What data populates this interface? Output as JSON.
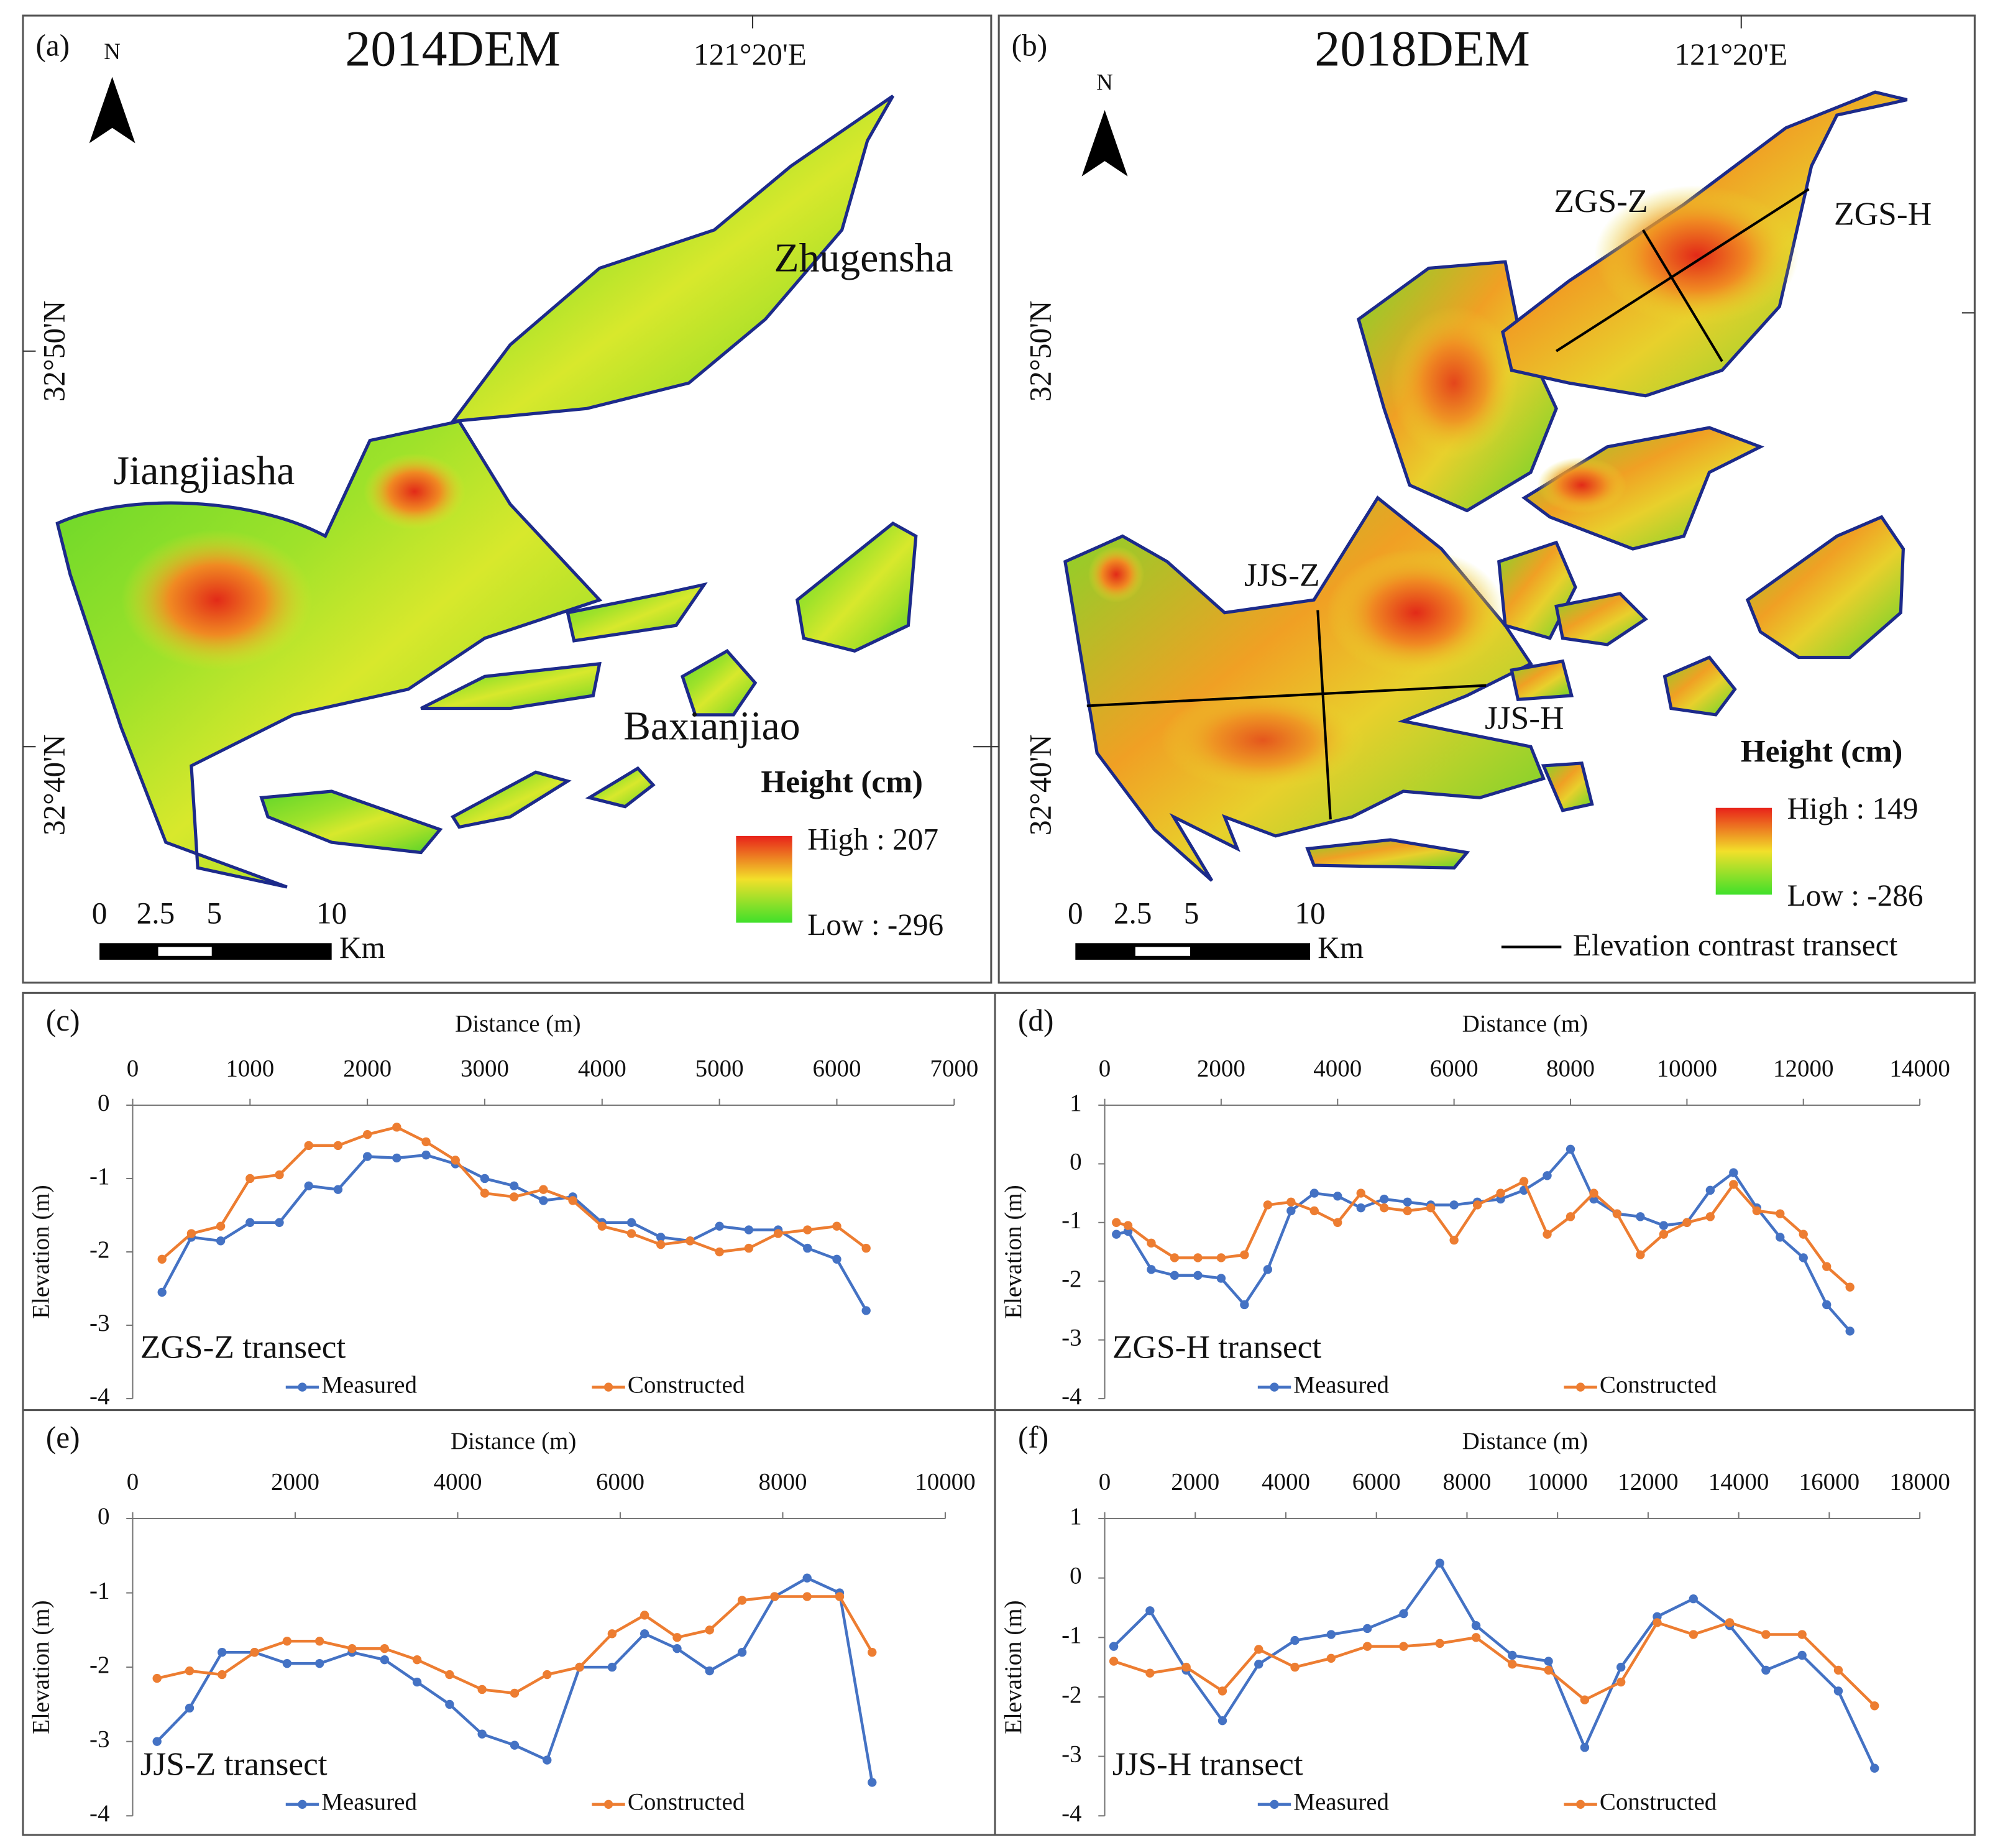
{
  "maps": [
    {
      "label": "(a)",
      "title": "2014DEM",
      "longitude": "121°20'E",
      "latitudes": [
        "32°50'N",
        "32°40'N"
      ],
      "north": "N",
      "places": [
        "Jiangjiasha",
        "Zhugensha",
        "Baxianjiao"
      ],
      "legend_title": "Height (cm)",
      "high": "High : 207",
      "low": "Low : -296",
      "scale": [
        "0",
        "2.5",
        "5",
        "10"
      ],
      "scale_unit": "Km"
    },
    {
      "label": "(b)",
      "title": "2018DEM",
      "longitude": "121°20'E",
      "latitudes": [
        "32°50'N",
        "32°40'N"
      ],
      "north": "N",
      "transects": [
        "ZGS-Z",
        "ZGS-H",
        "JJS-Z",
        "JJS-H"
      ],
      "legend_title": "Height (cm)",
      "high": "High : 149",
      "low": "Low : -286",
      "scale": [
        "0",
        "2.5",
        "5",
        "10"
      ],
      "scale_unit": "Km",
      "transect_legend": "Elevation contrast transect"
    }
  ],
  "chart_data": [
    {
      "type": "line",
      "panel": "(c)",
      "x_label": "Distance (m)",
      "y_label": "Elevation (m)",
      "annotation": "ZGS-Z transect",
      "xlim": [
        0,
        7000
      ],
      "xticks": [
        0,
        1000,
        2000,
        3000,
        4000,
        5000,
        6000,
        7000
      ],
      "ylim": [
        -4,
        0
      ],
      "yticks": [
        -4,
        -3,
        -2,
        -1,
        0
      ],
      "x": [
        250,
        500,
        750,
        1000,
        1250,
        1500,
        1750,
        2000,
        2250,
        2500,
        2750,
        3000,
        3250,
        3500,
        3750,
        4000,
        4250,
        4500,
        4750,
        5000,
        5250,
        5500,
        5750,
        6000,
        6250
      ],
      "series": [
        {
          "name": "Measured",
          "color": "#4472c4",
          "values": [
            -2.55,
            -1.8,
            -1.85,
            -1.6,
            -1.6,
            -1.1,
            -1.15,
            -0.7,
            -0.72,
            -0.68,
            -0.8,
            -1.0,
            -1.1,
            -1.3,
            -1.25,
            -1.6,
            -1.6,
            -1.8,
            -1.85,
            -1.65,
            -1.7,
            -1.7,
            -1.95,
            -2.1,
            -2.8
          ]
        },
        {
          "name": "Constructed",
          "color": "#ed7d31",
          "values": [
            -2.1,
            -1.75,
            -1.65,
            -1.0,
            -0.95,
            -0.55,
            -0.55,
            -0.4,
            -0.3,
            -0.5,
            -0.75,
            -1.2,
            -1.25,
            -1.15,
            -1.3,
            -1.65,
            -1.75,
            -1.9,
            -1.85,
            -2.0,
            -1.95,
            -1.75,
            -1.7,
            -1.65,
            -1.95
          ]
        }
      ]
    },
    {
      "type": "line",
      "panel": "(d)",
      "x_label": "Distance (m)",
      "y_label": "Elevation (m)",
      "annotation": "ZGS-H transect",
      "xlim": [
        0,
        14000
      ],
      "xticks": [
        0,
        2000,
        4000,
        6000,
        8000,
        10000,
        12000,
        14000
      ],
      "ylim": [
        -4,
        1
      ],
      "yticks": [
        -4,
        -3,
        -2,
        -1,
        0,
        1
      ],
      "x": [
        200,
        400,
        800,
        1200,
        1600,
        2000,
        2400,
        2800,
        3200,
        3600,
        4000,
        4400,
        4800,
        5200,
        5600,
        6000,
        6400,
        6800,
        7200,
        7600,
        8000,
        8400,
        8800,
        9200,
        9600,
        10000,
        10400,
        10800,
        11200,
        11600,
        12000,
        12400,
        12800
      ],
      "series": [
        {
          "name": "Measured",
          "color": "#4472c4",
          "values": [
            -1.2,
            -1.15,
            -1.8,
            -1.9,
            -1.9,
            -1.95,
            -2.4,
            -1.8,
            -0.8,
            -0.5,
            -0.55,
            -0.75,
            -0.6,
            -0.65,
            -0.7,
            -0.7,
            -0.65,
            -0.6,
            -0.45,
            -0.2,
            0.25,
            -0.6,
            -0.85,
            -0.9,
            -1.05,
            -1.0,
            -0.45,
            -0.15,
            -0.75,
            -1.25,
            -1.6,
            -2.4,
            -2.85
          ]
        },
        {
          "name": "Constructed",
          "color": "#ed7d31",
          "values": [
            -1.0,
            -1.05,
            -1.35,
            -1.6,
            -1.6,
            -1.6,
            -1.55,
            -0.7,
            -0.65,
            -0.8,
            -1.0,
            -0.5,
            -0.75,
            -0.8,
            -0.75,
            -1.3,
            -0.7,
            -0.5,
            -0.3,
            -1.2,
            -0.9,
            -0.5,
            -0.85,
            -1.55,
            -1.2,
            -1.0,
            -0.9,
            -0.35,
            -0.8,
            -0.85,
            -1.2,
            -1.75,
            -2.1
          ]
        }
      ]
    },
    {
      "type": "line",
      "panel": "(e)",
      "x_label": "Distance (m)",
      "y_label": "Elevation (m)",
      "annotation": "JJS-Z transect",
      "xlim": [
        0,
        10000
      ],
      "xticks": [
        0,
        2000,
        4000,
        6000,
        8000,
        10000
      ],
      "ylim": [
        -4,
        0
      ],
      "yticks": [
        -4,
        -3,
        -2,
        -1,
        0
      ],
      "x": [
        300,
        700,
        1100,
        1500,
        1900,
        2300,
        2700,
        3100,
        3500,
        3900,
        4300,
        4700,
        5100,
        5500,
        5900,
        6300,
        6700,
        7100,
        7500,
        7900,
        8300,
        8700,
        9100
      ],
      "series": [
        {
          "name": "Measured",
          "color": "#4472c4",
          "values": [
            -3.0,
            -2.55,
            -1.8,
            -1.8,
            -1.95,
            -1.95,
            -1.8,
            -1.9,
            -2.2,
            -2.5,
            -2.9,
            -3.05,
            -3.25,
            -2.0,
            -2.0,
            -1.55,
            -1.75,
            -2.05,
            -1.8,
            -1.05,
            -0.8,
            -1.0,
            -3.55
          ]
        },
        {
          "name": "Constructed",
          "color": "#ed7d31",
          "values": [
            -2.15,
            -2.05,
            -2.1,
            -1.8,
            -1.65,
            -1.65,
            -1.75,
            -1.75,
            -1.9,
            -2.1,
            -2.3,
            -2.35,
            -2.1,
            -2.0,
            -1.55,
            -1.3,
            -1.6,
            -1.5,
            -1.1,
            -1.05,
            -1.05,
            -1.05,
            -1.8
          ]
        }
      ]
    },
    {
      "type": "line",
      "panel": "(f)",
      "x_label": "Distance (m)",
      "y_label": "Elevation (m)",
      "annotation": "JJS-H transect",
      "xlim": [
        0,
        18000
      ],
      "xticks": [
        0,
        2000,
        4000,
        6000,
        8000,
        10000,
        12000,
        14000,
        16000,
        18000
      ],
      "ylim": [
        -4,
        1
      ],
      "yticks": [
        -4,
        -3,
        -2,
        -1,
        0,
        1
      ],
      "x": [
        200,
        1000,
        1800,
        2600,
        3400,
        4200,
        5000,
        5800,
        6600,
        7400,
        8200,
        9000,
        9800,
        10600,
        11400,
        12200,
        13000,
        13800,
        14600,
        15400,
        16200,
        17000
      ],
      "series": [
        {
          "name": "Measured",
          "color": "#4472c4",
          "values": [
            -1.15,
            -0.55,
            -1.55,
            -2.4,
            -1.45,
            -1.05,
            -0.95,
            -0.85,
            -0.6,
            0.25,
            -0.8,
            -1.3,
            -1.4,
            -2.85,
            -1.5,
            -0.65,
            -0.35,
            -0.8,
            -1.55,
            -1.3,
            -1.9,
            -3.2
          ]
        },
        {
          "name": "Constructed",
          "color": "#ed7d31",
          "values": [
            -1.4,
            -1.6,
            -1.5,
            -1.9,
            -1.2,
            -1.5,
            -1.35,
            -1.15,
            -1.15,
            -1.1,
            -1.0,
            -1.45,
            -1.55,
            -2.05,
            -1.75,
            -0.75,
            -0.95,
            -0.75,
            -0.95,
            -0.95,
            -1.55,
            -2.15
          ]
        }
      ]
    }
  ]
}
